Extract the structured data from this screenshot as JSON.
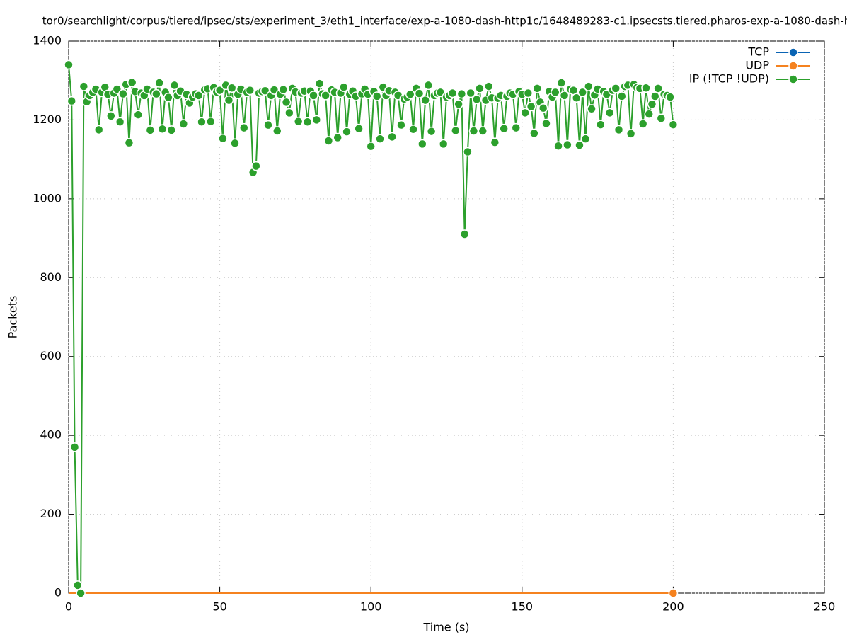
{
  "chart_data": {
    "type": "line",
    "title": "tor0/searchlight/corpus/tiered/ipsec/sts/experiment_3/eth1_interface/exp-a-1080-dash-http1c/1648489283-c1.ipsecsts.tiered.pharos-exp-a-1080-dash-h",
    "x_label": "Time (s)",
    "y_label": "Packets",
    "xlim": [
      0,
      250
    ],
    "xticks": [
      0,
      50,
      100,
      150,
      200,
      250
    ],
    "ylim": [
      0,
      1400
    ],
    "yticks": [
      0,
      200,
      400,
      600,
      800,
      1000,
      1200,
      1400
    ],
    "grid": true,
    "legend": "top-right",
    "x": [
      0,
      1,
      2,
      3,
      4,
      5,
      6,
      7,
      8,
      9,
      10,
      11,
      12,
      13,
      14,
      15,
      16,
      17,
      18,
      19,
      20,
      21,
      22,
      23,
      24,
      25,
      26,
      27,
      28,
      29,
      30,
      31,
      32,
      33,
      34,
      35,
      36,
      37,
      38,
      39,
      40,
      41,
      42,
      43,
      44,
      45,
      46,
      47,
      48,
      49,
      50,
      51,
      52,
      53,
      54,
      55,
      56,
      57,
      58,
      59,
      60,
      61,
      62,
      63,
      64,
      65,
      66,
      67,
      68,
      69,
      70,
      71,
      72,
      73,
      74,
      75,
      76,
      77,
      78,
      79,
      80,
      81,
      82,
      83,
      84,
      85,
      86,
      87,
      88,
      89,
      90,
      91,
      92,
      93,
      94,
      95,
      96,
      97,
      98,
      99,
      100,
      101,
      102,
      103,
      104,
      105,
      106,
      107,
      108,
      109,
      110,
      111,
      112,
      113,
      114,
      115,
      116,
      117,
      118,
      119,
      120,
      121,
      122,
      123,
      124,
      125,
      126,
      127,
      128,
      129,
      130,
      131,
      132,
      133,
      134,
      135,
      136,
      137,
      138,
      139,
      140,
      141,
      142,
      143,
      144,
      145,
      146,
      147,
      148,
      149,
      150,
      151,
      152,
      153,
      154,
      155,
      156,
      157,
      158,
      159,
      160,
      161,
      162,
      163,
      164,
      165,
      166,
      167,
      168,
      169,
      170,
      171,
      172,
      173,
      174,
      175,
      176,
      177,
      178,
      179,
      180,
      181,
      182,
      183,
      184,
      185,
      186,
      187,
      188,
      189,
      190,
      191,
      192,
      193,
      194,
      195,
      196,
      197,
      198,
      199,
      200
    ],
    "series": [
      {
        "name": "TCP",
        "color": "#0a64b4",
        "point_interval": 201,
        "values": [
          0,
          0,
          0,
          0,
          0,
          0,
          0,
          0,
          0,
          0,
          0,
          0,
          0,
          0,
          0,
          0,
          0,
          0,
          0,
          0,
          0,
          0,
          0,
          0,
          0,
          0,
          0,
          0,
          0,
          0,
          0,
          0,
          0,
          0,
          0,
          0,
          0,
          0,
          0,
          0,
          0,
          0,
          0,
          0,
          0,
          0,
          0,
          0,
          0,
          0,
          0,
          0,
          0,
          0,
          0,
          0,
          0,
          0,
          0,
          0,
          0,
          0,
          0,
          0,
          0,
          0,
          0,
          0,
          0,
          0,
          0,
          0,
          0,
          0,
          0,
          0,
          0,
          0,
          0,
          0,
          0,
          0,
          0,
          0,
          0,
          0,
          0,
          0,
          0,
          0,
          0,
          0,
          0,
          0,
          0,
          0,
          0,
          0,
          0,
          0,
          0,
          0,
          0,
          0,
          0,
          0,
          0,
          0,
          0,
          0,
          0,
          0,
          0,
          0,
          0,
          0,
          0,
          0,
          0,
          0,
          0,
          0,
          0,
          0,
          0,
          0,
          0,
          0,
          0,
          0,
          0,
          0,
          0,
          0,
          0,
          0,
          0,
          0,
          0,
          0,
          0,
          0,
          0,
          0,
          0,
          0,
          0,
          0,
          0,
          0,
          0,
          0,
          0,
          0,
          0,
          0,
          0,
          0,
          0,
          0,
          0,
          0,
          0,
          0,
          0,
          0,
          0,
          0,
          0,
          0,
          0,
          0,
          0,
          0,
          0,
          0,
          0,
          0,
          0,
          0,
          0,
          0,
          0,
          0,
          0,
          0,
          0,
          0,
          0,
          0,
          0,
          0,
          0,
          0,
          0,
          0,
          0,
          0,
          0,
          0,
          0
        ]
      },
      {
        "name": "UDP",
        "color": "#f5821f",
        "point_interval": 201,
        "values": [
          0,
          0,
          0,
          0,
          0,
          0,
          0,
          0,
          0,
          0,
          0,
          0,
          0,
          0,
          0,
          0,
          0,
          0,
          0,
          0,
          0,
          0,
          0,
          0,
          0,
          0,
          0,
          0,
          0,
          0,
          0,
          0,
          0,
          0,
          0,
          0,
          0,
          0,
          0,
          0,
          0,
          0,
          0,
          0,
          0,
          0,
          0,
          0,
          0,
          0,
          0,
          0,
          0,
          0,
          0,
          0,
          0,
          0,
          0,
          0,
          0,
          0,
          0,
          0,
          0,
          0,
          0,
          0,
          0,
          0,
          0,
          0,
          0,
          0,
          0,
          0,
          0,
          0,
          0,
          0,
          0,
          0,
          0,
          0,
          0,
          0,
          0,
          0,
          0,
          0,
          0,
          0,
          0,
          0,
          0,
          0,
          0,
          0,
          0,
          0,
          0,
          0,
          0,
          0,
          0,
          0,
          0,
          0,
          0,
          0,
          0,
          0,
          0,
          0,
          0,
          0,
          0,
          0,
          0,
          0,
          0,
          0,
          0,
          0,
          0,
          0,
          0,
          0,
          0,
          0,
          0,
          0,
          0,
          0,
          0,
          0,
          0,
          0,
          0,
          0,
          0,
          0,
          0,
          0,
          0,
          0,
          0,
          0,
          0,
          0,
          0,
          0,
          0,
          0,
          0,
          0,
          0,
          0,
          0,
          0,
          0,
          0,
          0,
          0,
          0,
          0,
          0,
          0,
          0,
          0,
          0,
          0,
          0,
          0,
          0,
          0,
          0,
          0,
          0,
          0,
          0,
          0,
          0,
          0,
          0,
          0,
          0,
          0,
          0,
          0,
          0,
          0,
          0,
          0,
          0,
          0,
          0,
          0,
          0,
          0,
          0
        ]
      },
      {
        "name": "IP (!TCP  !UDP)",
        "color": "#2ca02c",
        "point_interval": 1,
        "values": [
          1340,
          1248,
          370,
          20,
          0,
          1285,
          1246,
          1262,
          1270,
          1278,
          1175,
          1270,
          1283,
          1265,
          1210,
          1268,
          1278,
          1195,
          1266,
          1290,
          1142,
          1295,
          1272,
          1213,
          1268,
          1262,
          1278,
          1174,
          1270,
          1266,
          1294,
          1177,
          1270,
          1257,
          1174,
          1288,
          1262,
          1273,
          1190,
          1265,
          1243,
          1258,
          1266,
          1262,
          1195,
          1276,
          1279,
          1196,
          1282,
          1271,
          1275,
          1153,
          1288,
          1250,
          1281,
          1141,
          1265,
          1278,
          1180,
          1270,
          1275,
          1067,
          1083,
          1268,
          1272,
          1274,
          1187,
          1262,
          1276,
          1172,
          1265,
          1277,
          1245,
          1218,
          1280,
          1271,
          1196,
          1268,
          1273,
          1195,
          1273,
          1262,
          1200,
          1292,
          1266,
          1262,
          1147,
          1276,
          1270,
          1155,
          1268,
          1283,
          1170,
          1265,
          1273,
          1260,
          1178,
          1266,
          1278,
          1265,
          1133,
          1272,
          1260,
          1152,
          1283,
          1262,
          1274,
          1157,
          1270,
          1262,
          1187,
          1253,
          1258,
          1265,
          1176,
          1280,
          1267,
          1139,
          1250,
          1288,
          1171,
          1262,
          1268,
          1270,
          1139,
          1258,
          1262,
          1268,
          1173,
          1240,
          1266,
          910,
          1119,
          1268,
          1172,
          1252,
          1280,
          1172,
          1250,
          1285,
          1256,
          1143,
          1255,
          1262,
          1178,
          1260,
          1268,
          1265,
          1180,
          1272,
          1265,
          1218,
          1268,
          1234,
          1166,
          1280,
          1245,
          1230,
          1191,
          1272,
          1258,
          1270,
          1134,
          1294,
          1262,
          1137,
          1278,
          1275,
          1256,
          1136,
          1270,
          1152,
          1285,
          1228,
          1263,
          1278,
          1188,
          1272,
          1265,
          1218,
          1275,
          1280,
          1175,
          1260,
          1285,
          1288,
          1165,
          1290,
          1282,
          1280,
          1190,
          1281,
          1215,
          1240,
          1260,
          1280,
          1204,
          1265,
          1262,
          1258,
          1188
        ]
      }
    ]
  }
}
